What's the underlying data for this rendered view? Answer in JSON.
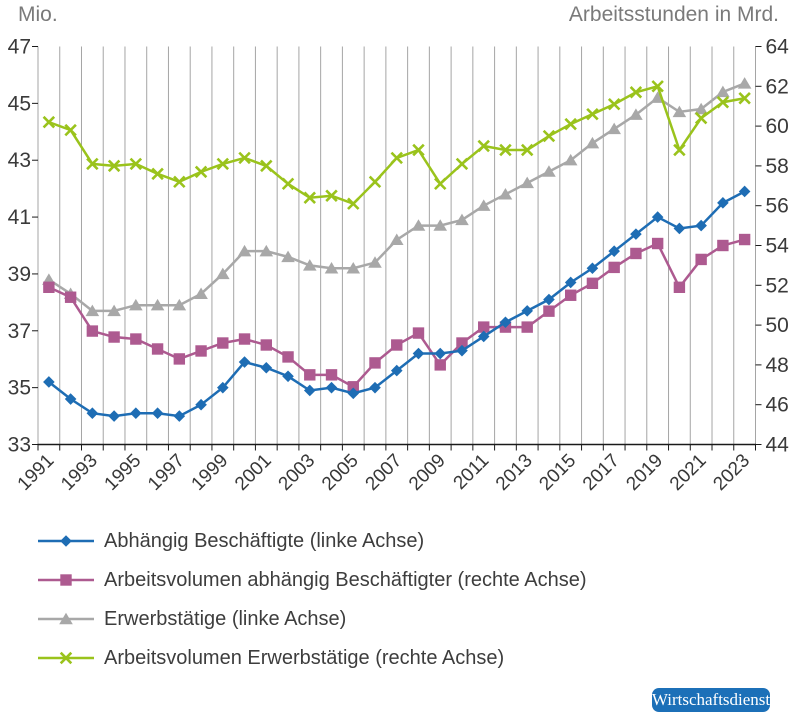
{
  "chart_data": {
    "type": "line",
    "x": [
      1991,
      1992,
      1993,
      1994,
      1995,
      1996,
      1997,
      1998,
      1999,
      2000,
      2001,
      2002,
      2003,
      2004,
      2005,
      2006,
      2007,
      2008,
      2009,
      2010,
      2011,
      2012,
      2013,
      2014,
      2015,
      2016,
      2017,
      2018,
      2019,
      2020,
      2021,
      2022,
      2023
    ],
    "x_tick_labels": [
      "1991",
      "1993",
      "1995",
      "1997",
      "1999",
      "2001",
      "2003",
      "2005",
      "2007",
      "2009",
      "2011",
      "2013",
      "2015",
      "2017",
      "2019",
      "2021",
      "2023"
    ],
    "left_axis": {
      "title": "Mio.",
      "min": 33,
      "max": 47,
      "ticks": [
        47,
        45,
        43,
        41,
        39,
        37,
        35,
        33
      ]
    },
    "right_axis": {
      "title": "Arbeitsstunden in Mrd.",
      "min": 44,
      "max": 64,
      "ticks": [
        64,
        62,
        60,
        58,
        56,
        54,
        52,
        50,
        48,
        46,
        44
      ]
    },
    "grid": "vertical-only",
    "legend_position": "bottom-left",
    "series": [
      {
        "name": "Abhängig Beschäftigte (linke Achse)",
        "axis": "left",
        "color": "#1e6db4",
        "marker": "diamond",
        "values": [
          35.2,
          34.6,
          34.1,
          34.0,
          34.1,
          34.1,
          34.0,
          34.4,
          35.0,
          35.9,
          35.7,
          35.4,
          34.9,
          35.0,
          34.8,
          35.0,
          35.6,
          36.2,
          36.2,
          36.3,
          36.8,
          37.3,
          37.7,
          38.1,
          38.7,
          39.2,
          39.8,
          40.4,
          41.0,
          40.6,
          40.7,
          41.5,
          41.9
        ]
      },
      {
        "name": "Arbeitsvolumen abhängig Beschäftigter (rechte Achse)",
        "axis": "right",
        "color": "#ad5a90",
        "marker": "square",
        "values": [
          51.9,
          51.4,
          49.7,
          49.4,
          49.3,
          48.8,
          48.3,
          48.7,
          49.1,
          49.3,
          49.0,
          48.4,
          47.5,
          47.5,
          46.9,
          48.1,
          49.0,
          49.6,
          48.0,
          49.1,
          49.9,
          49.9,
          49.9,
          50.7,
          51.5,
          52.1,
          52.9,
          53.6,
          54.1,
          51.9,
          53.3,
          54.0,
          54.3
        ]
      },
      {
        "name": "Erwerbstätige (linke Achse)",
        "axis": "left",
        "color": "#a8a8a8",
        "marker": "triangle",
        "values": [
          38.8,
          38.3,
          37.7,
          37.7,
          37.9,
          37.9,
          37.9,
          38.3,
          39.0,
          39.8,
          39.8,
          39.6,
          39.3,
          39.2,
          39.2,
          39.4,
          40.2,
          40.7,
          40.7,
          40.9,
          41.4,
          41.8,
          42.2,
          42.6,
          43.0,
          43.6,
          44.1,
          44.6,
          45.2,
          44.7,
          44.8,
          45.4,
          45.7
        ]
      },
      {
        "name": "Arbeitsvolumen Erwerbstätige (rechte Achse)",
        "axis": "right",
        "color": "#9ac31c",
        "marker": "x",
        "values": [
          60.2,
          59.8,
          58.1,
          58.0,
          58.1,
          57.6,
          57.2,
          57.7,
          58.1,
          58.4,
          58.0,
          57.1,
          56.4,
          56.5,
          56.1,
          57.2,
          58.4,
          58.8,
          57.1,
          58.1,
          59.0,
          58.8,
          58.8,
          59.5,
          60.1,
          60.6,
          61.1,
          61.7,
          62.0,
          58.8,
          60.4,
          61.2,
          61.4
        ]
      }
    ]
  },
  "footer": {
    "brand_badge": "Wirtschaftsdienst",
    "badge_color": "#1c70b8"
  }
}
